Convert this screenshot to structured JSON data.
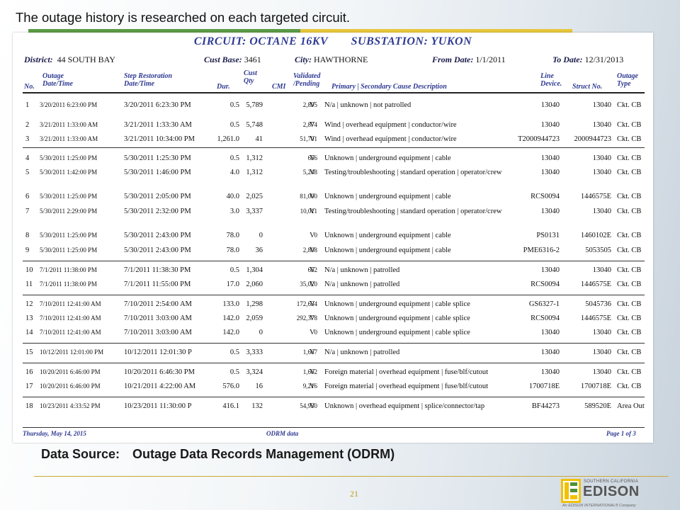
{
  "slide": {
    "title": "The outage history is researched on each targeted circuit.",
    "source_label": "Data Source:",
    "source_value": "Outage Data Records Management (ODRM)",
    "page_number": "21"
  },
  "report": {
    "circuit": "CIRCUIT:  OCTANE 16KV",
    "substation": "SUBSTATION:  YUKON",
    "district_label": "District:",
    "district": "44   SOUTH BAY",
    "cust_base_label": "Cust Base:",
    "cust_base": "3461",
    "city_label": "City:",
    "city": "HAWTHORNE",
    "from_label": "From Date:",
    "from_date": "1/1/2011",
    "to_label": "To Date:",
    "to_date": "12/31/2013",
    "headers": {
      "no": "No.",
      "outage": "Outage\nDate/Time",
      "step": "Step Restoration\nDate/Time",
      "dur": "Dur.",
      "qty": "Cust\nQty",
      "cmi": "CMI",
      "validated": "Validated\n/Pending",
      "desc": "Primary  |  Secondary Cause Description",
      "line": "Line\nDevice.",
      "struct": "Struct No.",
      "type": "Outage\nType"
    },
    "rows": [
      {
        "no": "1",
        "outage": "3/20/2011 6:23:00 PM",
        "step": "3/20/2011 6:23:30 PM",
        "dur": "0.5",
        "qty": "5,789",
        "cmi": "2,895",
        "v": "V",
        "desc": "N/a  |  unknown  |  not patrolled",
        "line": "13040",
        "struct": "13040",
        "type": "Ckt. CB"
      },
      {
        "no": "2",
        "outage": "3/21/2011 1:33:00 AM",
        "step": "3/21/2011 1:33:30 AM",
        "dur": "0.5",
        "qty": "5,748",
        "cmi": "2,874",
        "v": "V",
        "desc": "Wind  |  overhead equipment  |  conductor/wire",
        "line": "13040",
        "struct": "13040",
        "type": "Ckt. CB"
      },
      {
        "no": "3",
        "outage": "3/21/2011 1:33:00 AM",
        "step": "3/21/2011 10:34:00 PM",
        "dur": "1,261.0",
        "qty": "41",
        "cmi": "51,701",
        "v": "V",
        "desc": "Wind  |  overhead equipment  |  conductor/wire",
        "line": "T2000944723",
        "struct": "2000944723",
        "type": "Ckt. CB"
      },
      {
        "no": "4",
        "outage": "5/30/2011 1:25:00 PM",
        "step": "5/30/2011 1:25:30 PM",
        "dur": "0.5",
        "qty": "1,312",
        "cmi": "656",
        "v": "V",
        "desc": "Unknown  |  underground equipment  |  cable",
        "line": "13040",
        "struct": "13040",
        "type": "Ckt. CB"
      },
      {
        "no": "5",
        "outage": "5/30/2011 1:42:00 PM",
        "step": "5/30/2011 1:46:00 PM",
        "dur": "4.0",
        "qty": "1,312",
        "cmi": "5,248",
        "v": "V",
        "desc": "Testing/troubleshooting  |  standard operation  |  operator/crew",
        "line": "13040",
        "struct": "13040",
        "type": "Ckt. CB"
      },
      {
        "no": "6",
        "outage": "5/30/2011 1:25:00 PM",
        "step": "5/30/2011 2:05:00 PM",
        "dur": "40.0",
        "qty": "2,025",
        "cmi": "81,000",
        "v": "V",
        "desc": "Unknown  |  underground equipment  |  cable",
        "line": "RCS0094",
        "struct": "1446575E",
        "type": "Ckt. CB"
      },
      {
        "no": "7",
        "outage": "5/30/2011 2:29:00 PM",
        "step": "5/30/2011 2:32:00 PM",
        "dur": "3.0",
        "qty": "3,337",
        "cmi": "10,011",
        "v": "V",
        "desc": "Testing/troubleshooting  |  standard operation  |  operator/crew",
        "line": "13040",
        "struct": "13040",
        "type": "Ckt. CB"
      },
      {
        "no": "8",
        "outage": "5/30/2011 1:25:00 PM",
        "step": "5/30/2011 2:43:00 PM",
        "dur": "78.0",
        "qty": "0",
        "cmi": "0",
        "v": "V",
        "desc": "Unknown  |  underground equipment  |  cable",
        "line": "PS0131",
        "struct": "1460102E",
        "type": "Ckt. CB"
      },
      {
        "no": "9",
        "outage": "5/30/2011 1:25:00 PM",
        "step": "5/30/2011 2:43:00 PM",
        "dur": "78.0",
        "qty": "36",
        "cmi": "2,808",
        "v": "V",
        "desc": "Unknown  |  underground equipment  |  cable",
        "line": "PME6316-2",
        "struct": "5053505",
        "type": "Ckt. CB"
      },
      {
        "no": "10",
        "outage": "7/1/2011 11:38:00 PM",
        "step": "7/1/2011 11:38:30 PM",
        "dur": "0.5",
        "qty": "1,304",
        "cmi": "652",
        "v": "V",
        "desc": "N/a  |  unknown  |  patrolled",
        "line": "13040",
        "struct": "13040",
        "type": "Ckt. CB"
      },
      {
        "no": "11",
        "outage": "7/1/2011 11:38:00 PM",
        "step": "7/1/2011 11:55:00 PM",
        "dur": "17.0",
        "qty": "2,060",
        "cmi": "35,020",
        "v": "V",
        "desc": "N/a  |  unknown  |  patrolled",
        "line": "RCS0094",
        "struct": "1446575E",
        "type": "Ckt. CB"
      },
      {
        "no": "12",
        "outage": "7/10/2011 12:41:00 AM",
        "step": "7/10/2011 2:54:00 AM",
        "dur": "133.0",
        "qty": "1,298",
        "cmi": "172,634",
        "v": "V",
        "desc": "Unknown  |  underground equipment  |  cable splice",
        "line": "GS6327-1",
        "struct": "5045736",
        "type": "Ckt. CB"
      },
      {
        "no": "13",
        "outage": "7/10/2011 12:41:00 AM",
        "step": "7/10/2011 3:03:00 AM",
        "dur": "142.0",
        "qty": "2,059",
        "cmi": "292,378",
        "v": "V",
        "desc": "Unknown  |  underground equipment  |  cable splice",
        "line": "RCS0094",
        "struct": "1446575E",
        "type": "Ckt. CB"
      },
      {
        "no": "14",
        "outage": "7/10/2011 12:41:00 AM",
        "step": "7/10/2011 3:03:00 AM",
        "dur": "142.0",
        "qty": "0",
        "cmi": "0",
        "v": "V",
        "desc": "Unknown  |  underground equipment  |  cable splice",
        "line": "13040",
        "struct": "13040",
        "type": "Ckt. CB"
      },
      {
        "no": "15",
        "outage": "10/12/2011 12:01:00 PM",
        "step": "10/12/2011 12:01:30 P",
        "dur": "0.5",
        "qty": "3,333",
        "cmi": "1,667",
        "v": "V",
        "desc": "N/a  |  unknown  |  patrolled",
        "line": "13040",
        "struct": "13040",
        "type": "Ckt. CB"
      },
      {
        "no": "16",
        "outage": "10/20/2011 6:46:00 PM",
        "step": "10/20/2011 6:46:30 PM",
        "dur": "0.5",
        "qty": "3,324",
        "cmi": "1,662",
        "v": "V",
        "desc": "Foreign material  |  overhead equipment  |  fuse/blf/cutout",
        "line": "13040",
        "struct": "13040",
        "type": "Ckt. CB"
      },
      {
        "no": "17",
        "outage": "10/20/2011 6:46:00 PM",
        "step": "10/21/2011 4:22:00 AM",
        "dur": "576.0",
        "qty": "16",
        "cmi": "9,216",
        "v": "V",
        "desc": "Foreign material  |  overhead equipment  |  fuse/blf/cutout",
        "line": "1700718E",
        "struct": "1700718E",
        "type": "Ckt. CB"
      },
      {
        "no": "18",
        "outage": "10/23/2011 4:33:52 PM",
        "step": "10/23/2011 11:30:00 P",
        "dur": "416.1",
        "qty": "132",
        "cmi": "54,930",
        "v": "V",
        "desc": "Unknown  |  overhead equipment  |  splice/connector/tap",
        "line": "BF44273",
        "struct": "589520E",
        "type": "Area Out"
      }
    ],
    "footer_left": "Thursday, May 14, 2015",
    "footer_center": "ODRM data",
    "footer_right": "Page 1 of 3"
  },
  "logo": {
    "sub": "SOUTHERN CALIFORNIA",
    "main": "EDISON",
    "tag": "An EDISON INTERNATIONAL® Company",
    "colors": {
      "yellow": "#f2c100",
      "green": "#4f8f3a"
    }
  }
}
